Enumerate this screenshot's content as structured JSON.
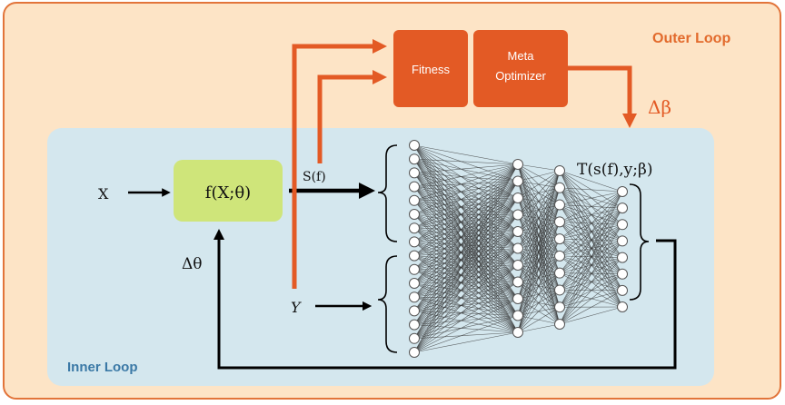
{
  "outer_loop": {
    "label": "Outer Loop"
  },
  "inner_loop": {
    "label": "Inner Loop"
  },
  "fitness_box": {
    "label": "Fitness"
  },
  "meta_optimizer_box": {
    "label_line1": "Meta",
    "label_line2": "Optimizer"
  },
  "model_box": {
    "label": "f(X;θ)"
  },
  "inputs": {
    "x": "X",
    "y": "Y"
  },
  "labels": {
    "s_f": "S(f)",
    "delta_beta": "Δβ",
    "delta_theta": "Δθ",
    "loss": "T(s(f),y;β)"
  },
  "network": {
    "input_nodes": 16,
    "hidden1_nodes": 11,
    "hidden2_nodes": 10,
    "output_nodes": 8
  },
  "colors": {
    "outer_bg": "#fde4c6",
    "outer_border": "#e2743a",
    "inner_bg": "#d4e7ee",
    "orange": "#e35a25",
    "green": "#cfe57a",
    "inner_title": "#3b79a6",
    "outer_title": "#e26a2c"
  }
}
